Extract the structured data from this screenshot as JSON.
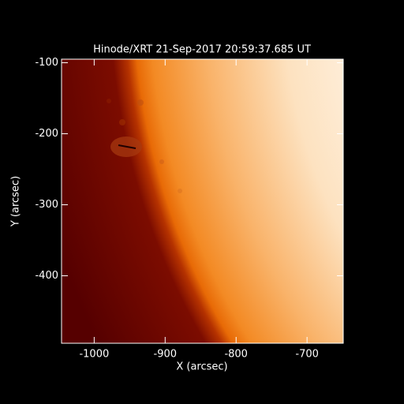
{
  "chart_data": {
    "type": "image",
    "title": "Hinode/XRT 21-Sep-2017 20:59:37.685 UT",
    "x_label": "X (arcsec)",
    "y_label": "Y (arcsec)",
    "xlim": [
      -1046,
      -649
    ],
    "xticks": [
      -1000,
      -900,
      -800,
      -700
    ],
    "ylim": [
      -495,
      -95
    ],
    "yticks": [
      -100,
      -200,
      -300,
      -400
    ]
  }
}
